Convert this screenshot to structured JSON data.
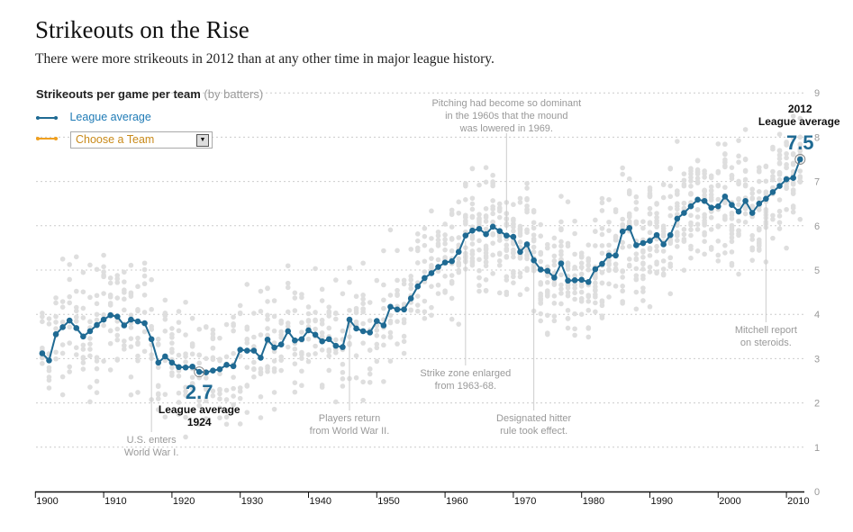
{
  "header": {
    "title": "Strikeouts on the Rise",
    "subtitle": "There were more strikeouts in 2012 than at any other time in major league history."
  },
  "legend": {
    "league_average_label": "League average",
    "team_select_value": "Choose a Team",
    "league_color": "#1f6a93",
    "team_color": "#f0a020"
  },
  "chart_data": {
    "type": "line",
    "title": "Strikeouts per game per team",
    "title_note": "(by batters)",
    "xlim": [
      1900,
      2012
    ],
    "ylim": [
      0,
      9
    ],
    "x_ticks": [
      "1900",
      "1910",
      "1920",
      "1930",
      "1940",
      "1950",
      "1960",
      "1970",
      "1980",
      "1990",
      "2000",
      "2010"
    ],
    "y_ticks": [
      "0",
      "1",
      "2",
      "3",
      "4",
      "5",
      "6",
      "7",
      "8",
      "9"
    ],
    "grid": "horizontal dotted",
    "series": [
      {
        "name": "League average",
        "x_start": 1901,
        "values": [
          3.12,
          2.96,
          3.55,
          3.71,
          3.86,
          3.69,
          3.5,
          3.62,
          3.76,
          3.88,
          3.98,
          3.95,
          3.75,
          3.88,
          3.84,
          3.8,
          3.44,
          2.91,
          3.05,
          2.91,
          2.81,
          2.8,
          2.82,
          2.7,
          2.69,
          2.73,
          2.76,
          2.86,
          2.83,
          3.2,
          3.18,
          3.18,
          3.02,
          3.43,
          3.25,
          3.32,
          3.62,
          3.41,
          3.44,
          3.64,
          3.54,
          3.39,
          3.44,
          3.29,
          3.26,
          3.88,
          3.68,
          3.62,
          3.59,
          3.85,
          3.75,
          4.17,
          4.11,
          4.11,
          4.36,
          4.63,
          4.82,
          4.93,
          5.07,
          5.17,
          5.2,
          5.41,
          5.78,
          5.89,
          5.93,
          5.81,
          5.98,
          5.88,
          5.78,
          5.75,
          5.41,
          5.58,
          5.22,
          5.01,
          4.98,
          4.83,
          5.15,
          4.76,
          4.77,
          4.78,
          4.73,
          5.02,
          5.14,
          5.33,
          5.33,
          5.87,
          5.95,
          5.56,
          5.61,
          5.66,
          5.79,
          5.58,
          5.79,
          6.16,
          6.29,
          6.44,
          6.59,
          6.56,
          6.41,
          6.44,
          6.66,
          6.47,
          6.32,
          6.56,
          6.29,
          6.5,
          6.61,
          6.76,
          6.9,
          7.05,
          7.08,
          7.5
        ]
      }
    ],
    "highlights": [
      {
        "year": 1924,
        "value_label": "2.7",
        "lines": [
          "League average",
          "1924"
        ]
      },
      {
        "year": 2012,
        "value_label": "7.5",
        "lines": [
          "2012",
          "League average"
        ]
      }
    ],
    "annotations": [
      {
        "year": 1917,
        "lines": [
          "U.S. enters",
          "World War I."
        ]
      },
      {
        "year": 1946,
        "lines": [
          "Players return",
          "from World War II."
        ]
      },
      {
        "year": 1963,
        "lines": [
          "Strike zone enlarged",
          "from 1963-68."
        ]
      },
      {
        "year": 1969,
        "lines": [
          "Pitching had become so dominant",
          "in the 1960s that the mound",
          "was lowered in 1969."
        ]
      },
      {
        "year": 1973,
        "lines": [
          "Designated hitter",
          "rule took effect."
        ]
      },
      {
        "year": 2007,
        "lines": [
          "Mitchell report",
          "on steroids."
        ]
      }
    ]
  }
}
